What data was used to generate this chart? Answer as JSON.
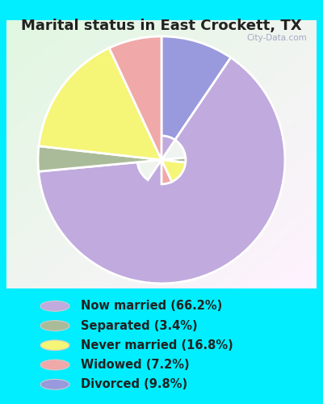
{
  "title": "Marital status in East Crockett, TX",
  "categories": [
    "Now married",
    "Separated",
    "Never married",
    "Widowed",
    "Divorced"
  ],
  "values": [
    66.2,
    3.4,
    16.8,
    7.2,
    9.8
  ],
  "colors": [
    "#c0aade",
    "#aabb99",
    "#f5f577",
    "#f0a8a8",
    "#9999dd"
  ],
  "legend_labels": [
    "Now married (66.2%)",
    "Separated (3.4%)",
    "Never married (16.8%)",
    "Widowed (7.2%)",
    "Divorced (9.8%)"
  ],
  "bg_outer": "#00eeff",
  "title_fontsize": 13,
  "legend_fontsize": 10.5,
  "watermark": "City-Data.com"
}
